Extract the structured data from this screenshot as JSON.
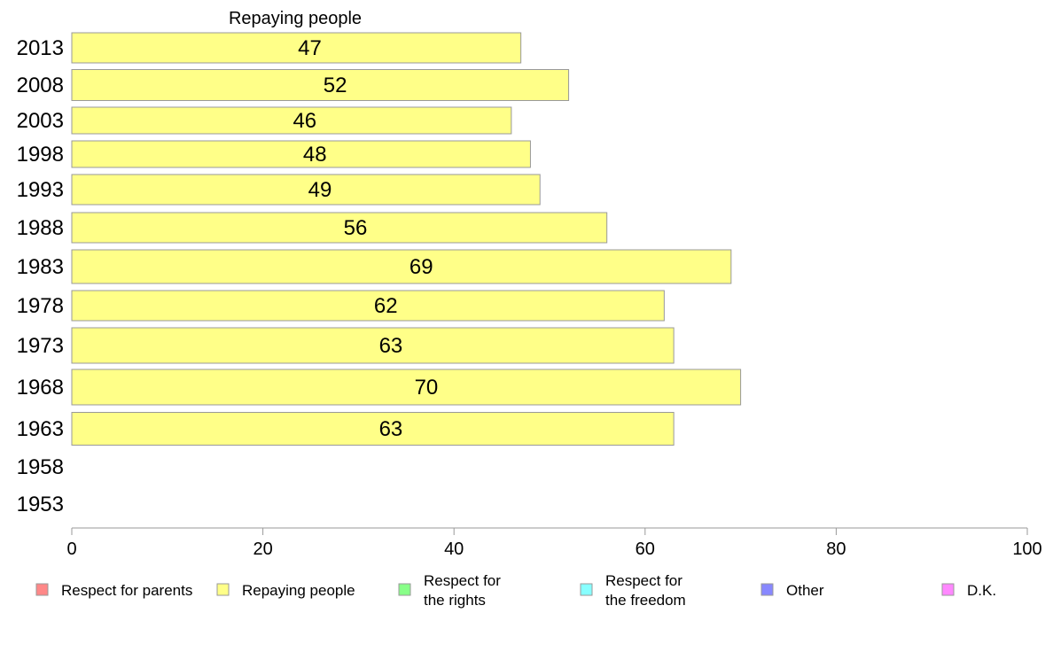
{
  "chart_data": {
    "type": "bar",
    "orientation": "horizontal",
    "title": "Repaying people",
    "categories": [
      "2013",
      "2008",
      "2003",
      "1998",
      "1993",
      "1988",
      "1983",
      "1978",
      "1973",
      "1968",
      "1963",
      "1958",
      "1953"
    ],
    "series": [
      {
        "name": "Repaying people",
        "color": "#ffff88",
        "values": [
          47,
          52,
          46,
          48,
          49,
          56,
          69,
          62,
          63,
          70,
          63,
          null,
          null
        ]
      }
    ],
    "xlim": [
      0,
      100
    ],
    "xticks": [
      0,
      20,
      40,
      60,
      80,
      100
    ],
    "grid": false,
    "legend": {
      "placement": "bottom",
      "items": [
        {
          "label": [
            "Respect for parents"
          ],
          "color": "#ff8888"
        },
        {
          "label": [
            "Repaying people"
          ],
          "color": "#ffff88"
        },
        {
          "label": [
            "Respect for",
            "the rights"
          ],
          "color": "#88ff88"
        },
        {
          "label": [
            "Respect for",
            "the freedom"
          ],
          "color": "#88ffff"
        },
        {
          "label": [
            "Other"
          ],
          "color": "#8888ff"
        },
        {
          "label": [
            "D.K."
          ],
          "color": "#ff88ff"
        }
      ]
    }
  }
}
